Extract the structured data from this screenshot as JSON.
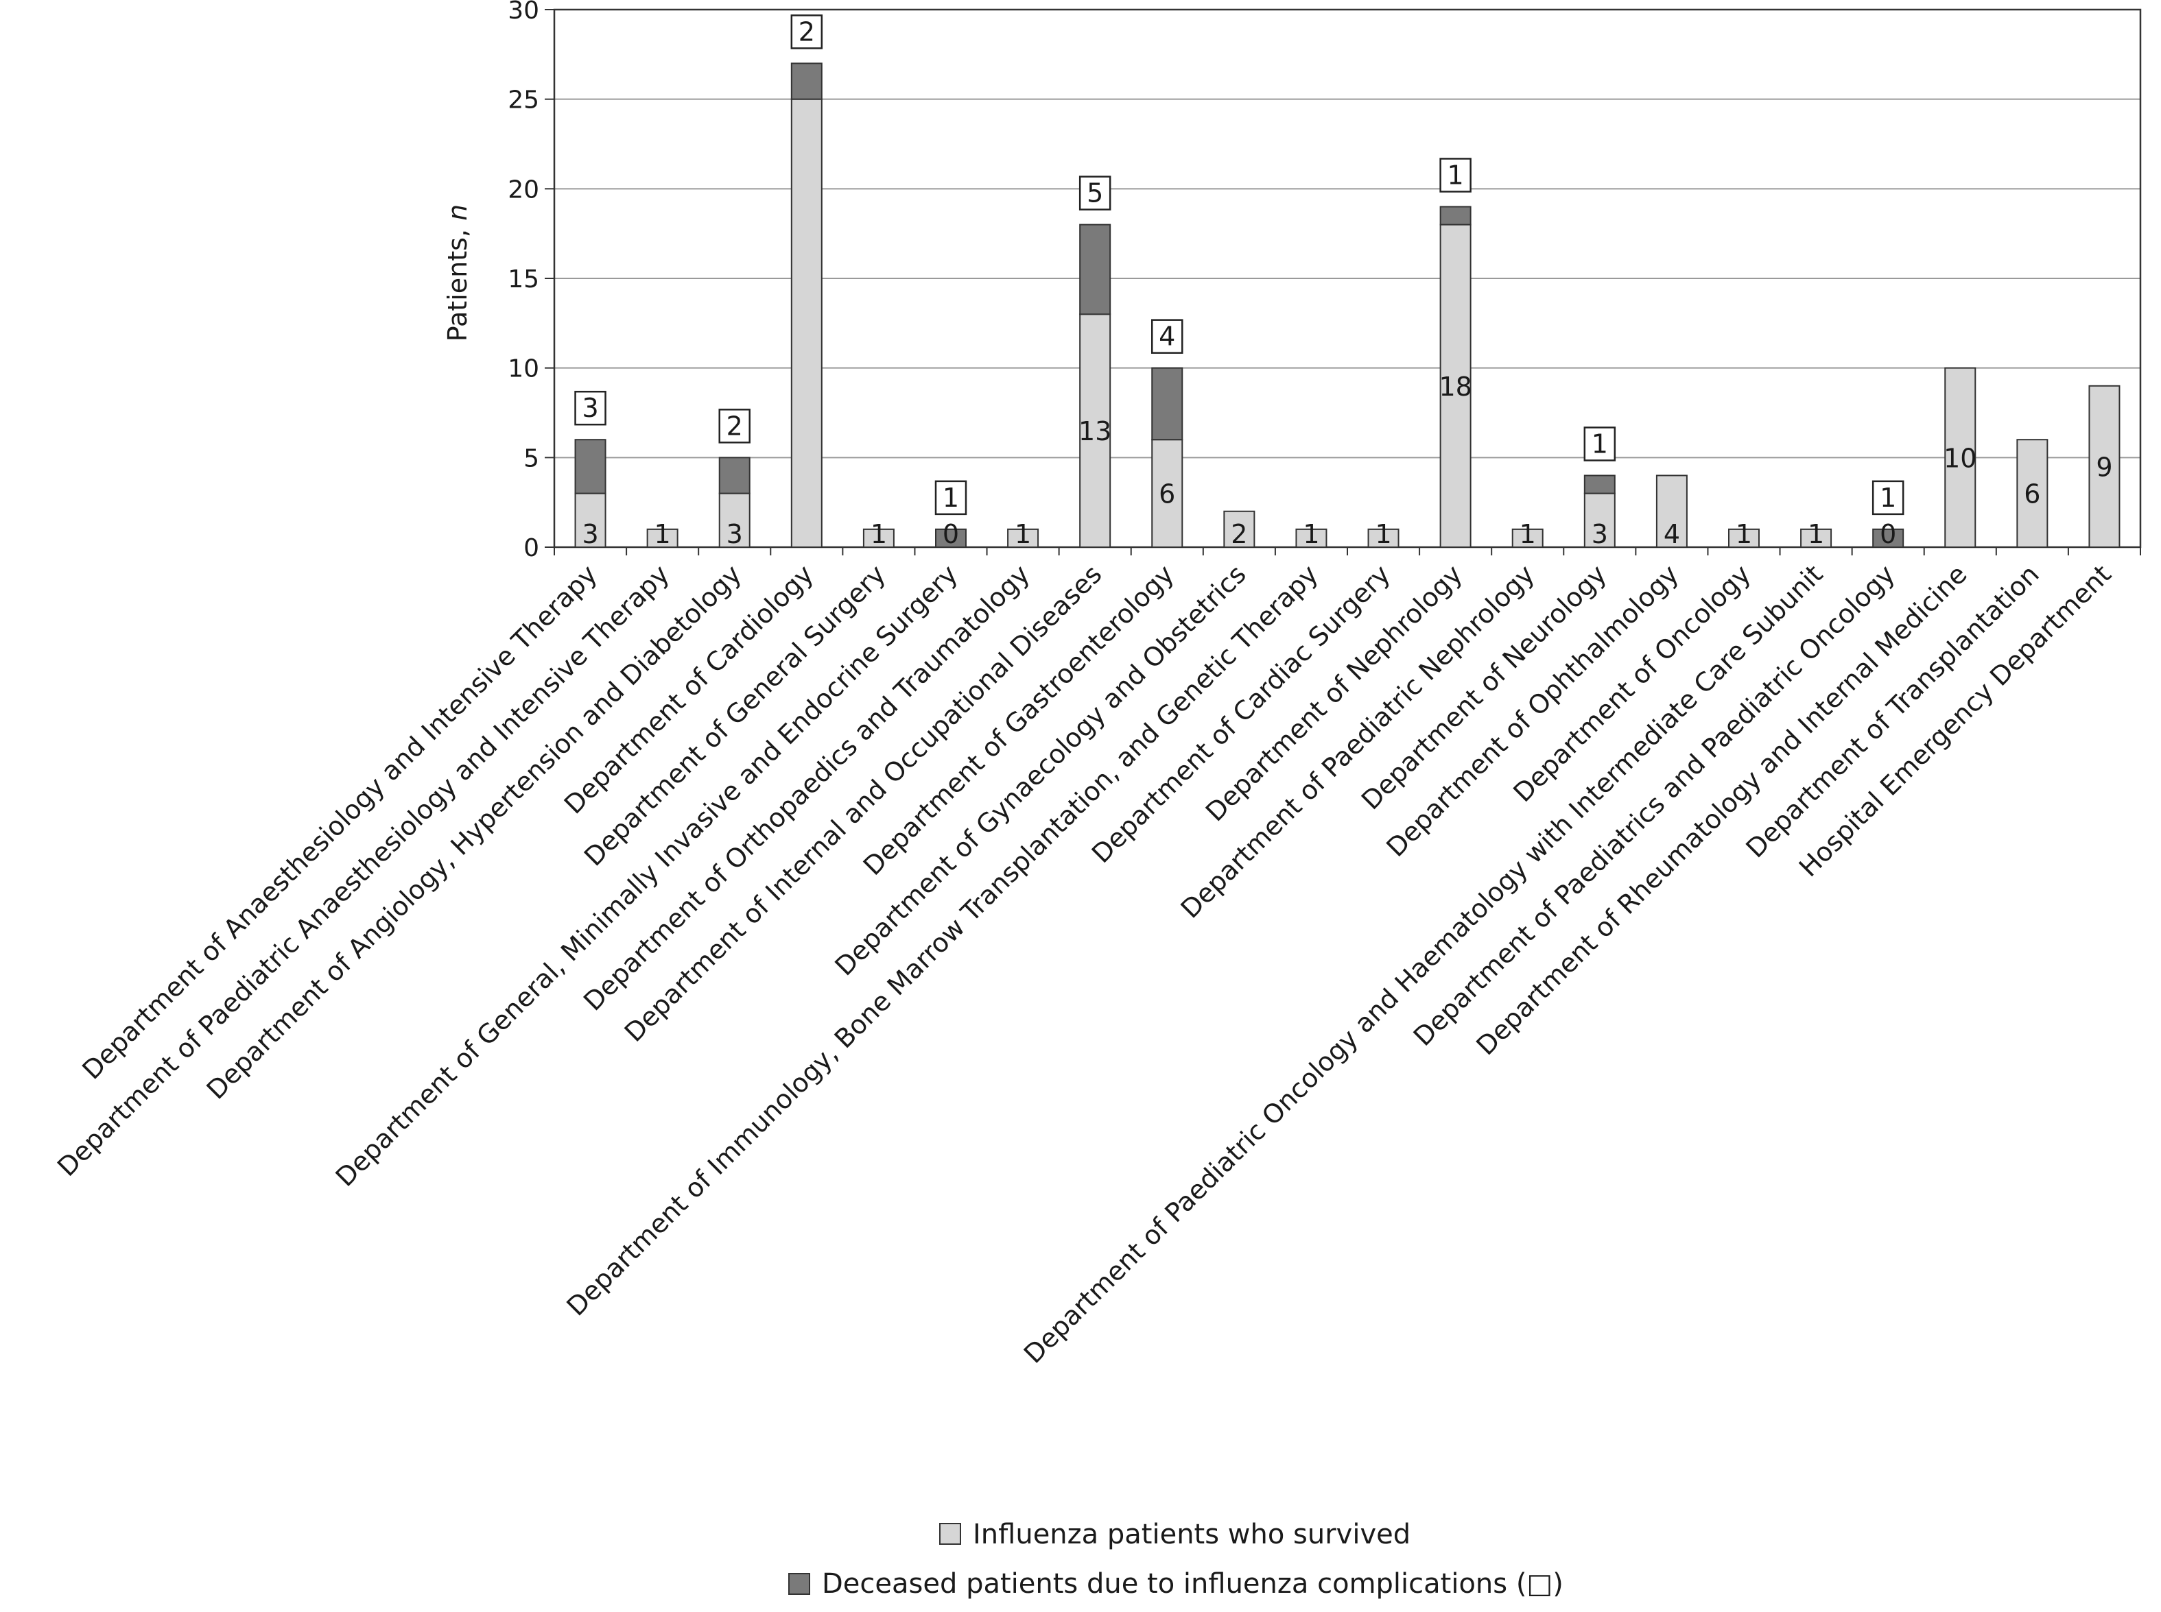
{
  "chart_data": {
    "type": "bar",
    "stacked": true,
    "ylabel": "Patients, ",
    "ylabel_italic": "n",
    "ylim": [
      0,
      30
    ],
    "yticks": [
      0,
      5,
      10,
      15,
      20,
      25,
      30
    ],
    "grid": true,
    "legend_placement": "bottom",
    "categories": [
      "Department of Anaesthesiology and Intensive Therapy",
      "Department of Paediatric Anaesthesiology and Intensive Therapy",
      "Department of Angiology, Hypertension and Diabetology",
      "Department of Cardiology",
      "Department of General Surgery",
      "Department of General, Minimally Invasive and Endocrine Surgery",
      "Department of Orthopaedics and Traumatology",
      "Department of Internal and Occupational Diseases",
      "Department of Gastroenterology",
      "Department of Gynaecology and Obstetrics",
      "Department of Immunology, Bone Marrow Transplantation, and Genetic Therapy",
      "Department of Cardiac Surgery",
      "Department of Nephrology",
      "Department of Paediatric Nephrology",
      "Department of Neurology",
      "Department of Ophthalmology",
      "Department of Oncology",
      "Department of Paediatric Oncology and Haematology with Intermediate Care Subunit",
      "Department of Paediatrics and Paediatric Oncology",
      "Department of Rheumatology and Internal Medicine",
      "Department of Transplantation",
      "Hospital Emergency Department"
    ],
    "series": [
      {
        "name": "Influenza patients who survived",
        "color": "#d6d6d6",
        "values": [
          3,
          1,
          3,
          25,
          1,
          0,
          1,
          13,
          6,
          2,
          1,
          1,
          18,
          1,
          3,
          4,
          1,
          1,
          0,
          10,
          6,
          9
        ],
        "labels": [
          "3",
          "1",
          "3",
          "",
          "1",
          "0",
          "1",
          "13",
          "6",
          "2",
          "1",
          "1",
          "18",
          "1",
          "3",
          "4",
          "1",
          "1",
          "0",
          "10",
          "6",
          "9"
        ]
      },
      {
        "name": "Deceased patients due to influenza complications (□)",
        "color": "#7a7a7a",
        "values": [
          3,
          0,
          2,
          2,
          0,
          1,
          0,
          5,
          4,
          0,
          0,
          0,
          1,
          0,
          1,
          0,
          0,
          0,
          1,
          0,
          0,
          0
        ],
        "labels": [
          "3",
          "",
          "2",
          "2",
          "",
          "1",
          "",
          "5",
          "4",
          "",
          "",
          "",
          "1",
          "",
          "1",
          "",
          "",
          "",
          "1",
          "",
          "",
          ""
        ]
      }
    ]
  }
}
